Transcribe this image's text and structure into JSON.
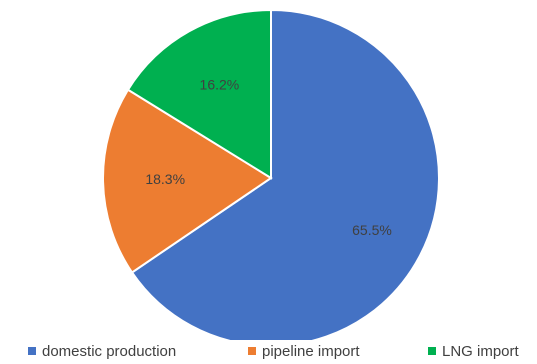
{
  "chart_data": {
    "type": "pie",
    "categories": [
      "domestic production",
      "pipeline import",
      "LNG import"
    ],
    "values": [
      65.5,
      18.3,
      16.2
    ],
    "data_labels": [
      "65.5%",
      "18.3%",
      "16.2%"
    ],
    "colors": [
      "#4472C4",
      "#ED7D31",
      "#00B050"
    ],
    "start_angle": "12 o'clock",
    "direction": "clockwise",
    "legend_position": "bottom",
    "title": ""
  }
}
